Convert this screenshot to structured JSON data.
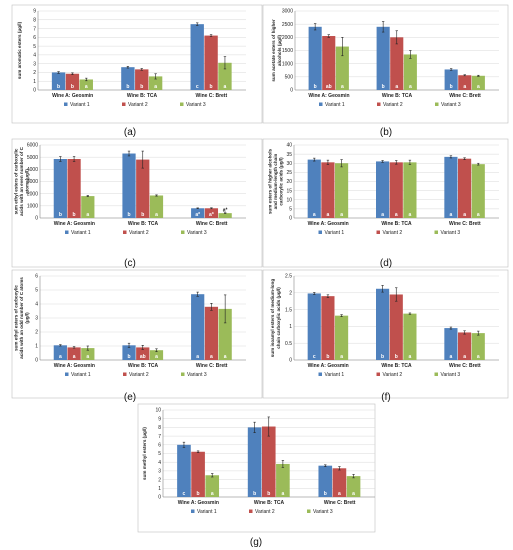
{
  "colors": {
    "variant_1": "#4f81bd",
    "variant_2": "#c0504d",
    "variant_3": "#9bbb59",
    "grid": "#d9d9d9",
    "axis": "#888888"
  },
  "chart_data": [
    {
      "type": "bar",
      "panel_label": "(a)",
      "ylabel": "sum aromatic esters (μg/l)",
      "categories": [
        "Wine A: Geosmin",
        "Wine B: TCA",
        "Wine C: Brett"
      ],
      "ylim": [
        0,
        9
      ],
      "yticks": [
        0,
        1,
        2,
        3,
        4,
        5,
        6,
        7,
        8,
        9
      ],
      "series": [
        {
          "name": "Variant 1",
          "values": [
            2.0,
            2.6,
            7.5
          ],
          "errors": [
            0.1,
            0.1,
            0.15
          ],
          "letters": [
            "b",
            "b",
            "c"
          ]
        },
        {
          "name": "Variant 2",
          "values": [
            1.85,
            2.35,
            6.2
          ],
          "errors": [
            0.1,
            0.1,
            0.1
          ],
          "letters": [
            "b",
            "b",
            "b"
          ]
        },
        {
          "name": "Variant 3",
          "values": [
            1.2,
            1.55,
            3.1
          ],
          "errors": [
            0.15,
            0.3,
            0.7
          ],
          "letters": [
            "a",
            "a",
            "a"
          ]
        }
      ],
      "legend": [
        "Variant 1",
        "Variant 2",
        "Variant 3"
      ],
      "legend_position": "bottom"
    },
    {
      "type": "bar",
      "panel_label": "(b)",
      "ylabel": "sum acetate esters of higher alcohols (μg/l)",
      "categories": [
        "Wine A: Geosmin",
        "Wine B: TCA",
        "Wine C: Brett"
      ],
      "ylim": [
        0,
        3000
      ],
      "yticks": [
        0,
        500,
        1000,
        1500,
        2000,
        2500,
        3000
      ],
      "series": [
        {
          "name": "Variant 1",
          "values": [
            2400,
            2400,
            780
          ],
          "errors": [
            120,
            200,
            30
          ],
          "letters": [
            "b",
            "b",
            "b"
          ]
        },
        {
          "name": "Variant 2",
          "values": [
            2050,
            2000,
            560
          ],
          "errors": [
            50,
            250,
            20
          ],
          "letters": [
            "ab",
            "a",
            "a"
          ]
        },
        {
          "name": "Variant 3",
          "values": [
            1650,
            1350,
            540
          ],
          "errors": [
            350,
            150,
            20
          ],
          "letters": [
            "a",
            "a",
            "a"
          ]
        }
      ],
      "legend": [
        "Variant 1",
        "Variant 2",
        "Variant 3"
      ],
      "legend_position": "bottom"
    },
    {
      "type": "bar",
      "panel_label": "(c)",
      "ylabel": "sum ethyl esters of carboxylic acids with an even number of C atoms(μg/l)",
      "categories": [
        "Wine A: Geosmin",
        "Wine B: TCA",
        "Wine C: Brett"
      ],
      "ylim": [
        0,
        6000
      ],
      "yticks": [
        0,
        1000,
        2000,
        3000,
        4000,
        5000,
        6000
      ],
      "series": [
        {
          "name": "Variant 1",
          "values": [
            4850,
            5300,
            800
          ],
          "errors": [
            200,
            200,
            30
          ],
          "letters": [
            "b",
            "b",
            "a*"
          ]
        },
        {
          "name": "Variant 2",
          "values": [
            4850,
            4800,
            800
          ],
          "errors": [
            200,
            700,
            40
          ],
          "letters": [
            "b",
            "b",
            "a*"
          ]
        },
        {
          "name": "Variant 3",
          "values": [
            1800,
            1850,
            400
          ],
          "errors": [
            50,
            50,
            30
          ],
          "letters": [
            "a",
            "a",
            "a*"
          ]
        }
      ],
      "legend": [
        "Variant 1",
        "Variant 2",
        "Variant 3"
      ],
      "legend_position": "bottom"
    },
    {
      "type": "bar",
      "panel_label": "(d)",
      "ylabel": "sum esters of higher alcohols and medium-length chain carboxylic acids (μg/l)",
      "categories": [
        "Wine A: Geosmin",
        "Wine B: TCA",
        "Wine C: Brett"
      ],
      "ylim": [
        0,
        40
      ],
      "yticks": [
        0,
        5,
        10,
        15,
        20,
        25,
        30,
        35,
        40
      ],
      "series": [
        {
          "name": "Variant 1",
          "values": [
            32,
            31,
            33.5
          ],
          "errors": [
            0.8,
            0.5,
            0.6
          ],
          "letters": [
            "a",
            "a",
            "a"
          ]
        },
        {
          "name": "Variant 2",
          "values": [
            30.5,
            30.5,
            32.5
          ],
          "errors": [
            1.2,
            1.0,
            0.5
          ],
          "letters": [
            "a",
            "a",
            "a"
          ]
        },
        {
          "name": "Variant 3",
          "values": [
            30,
            30.5,
            29.5
          ],
          "errors": [
            2.0,
            1.2,
            0.5
          ],
          "letters": [
            "a",
            "a",
            "a"
          ]
        }
      ],
      "legend": [
        "Variant 1",
        "Variant 2",
        "Variant 3"
      ],
      "legend_position": "bottom"
    },
    {
      "type": "bar",
      "panel_label": "(e)",
      "ylabel": "sum ethyl esters of carboxylic acids with an odd number of C atoms (μg/l)",
      "categories": [
        "Wine A: Geosmin",
        "Wine B: TCA",
        "Wine C: Brett"
      ],
      "ylim": [
        0,
        6
      ],
      "yticks": [
        0,
        1,
        2,
        3,
        4,
        5,
        6
      ],
      "series": [
        {
          "name": "Variant 1",
          "values": [
            1.05,
            1.05,
            4.7
          ],
          "errors": [
            0.05,
            0.15,
            0.15
          ],
          "letters": [
            "a",
            "b",
            "a"
          ]
        },
        {
          "name": "Variant 2",
          "values": [
            0.9,
            0.9,
            3.8
          ],
          "errors": [
            0.05,
            0.15,
            0.25
          ],
          "letters": [
            "a",
            "ab",
            "a"
          ]
        },
        {
          "name": "Variant 3",
          "values": [
            0.85,
            0.7,
            3.65
          ],
          "errors": [
            0.15,
            0.1,
            1.0
          ],
          "letters": [
            "a",
            "a",
            "a"
          ]
        }
      ],
      "legend": [
        "Variant 1",
        "Variant 2",
        "Variant 3"
      ],
      "legend_position": "bottom"
    },
    {
      "type": "bar",
      "panel_label": "(f)",
      "ylabel": "sum isoamyl esters of medium-long chain carboxylic acids (μg/l)",
      "categories": [
        "Wine A: Geosmin",
        "Wine B: TCA",
        "Wine C: Brett"
      ],
      "ylim": [
        0,
        2.5
      ],
      "yticks": [
        0,
        0.5,
        1,
        1.5,
        2,
        2.5
      ],
      "series": [
        {
          "name": "Variant 1",
          "values": [
            1.98,
            2.12,
            0.95
          ],
          "errors": [
            0.03,
            0.1,
            0.03
          ],
          "letters": [
            "c",
            "b",
            "a"
          ]
        },
        {
          "name": "Variant 2",
          "values": [
            1.9,
            1.95,
            0.82
          ],
          "errors": [
            0.04,
            0.2,
            0.05
          ],
          "letters": [
            "b",
            "b",
            "a"
          ]
        },
        {
          "name": "Variant 3",
          "values": [
            1.32,
            1.38,
            0.8
          ],
          "errors": [
            0.03,
            0.02,
            0.06
          ],
          "letters": [
            "a",
            "a",
            "a"
          ]
        }
      ],
      "legend": [
        "Variant 1",
        "Variant 2",
        "Variant 3"
      ],
      "legend_position": "bottom"
    },
    {
      "type": "bar",
      "panel_label": "(g)",
      "ylabel": "sum methyl esters (μg/l)",
      "categories": [
        "Wine A: Geosmin",
        "Wine B: TCA",
        "Wine C: Brett"
      ],
      "ylim": [
        0,
        10
      ],
      "yticks": [
        0,
        1,
        2,
        3,
        4,
        5,
        6,
        7,
        8,
        9,
        10
      ],
      "series": [
        {
          "name": "Variant 1",
          "values": [
            6.0,
            8.0,
            3.6
          ],
          "errors": [
            0.3,
            0.6,
            0.1
          ],
          "letters": [
            "c",
            "b",
            "b"
          ]
        },
        {
          "name": "Variant 2",
          "values": [
            5.2,
            8.1,
            3.3
          ],
          "errors": [
            0.1,
            1.1,
            0.2
          ],
          "letters": [
            "b",
            "b",
            "a"
          ]
        },
        {
          "name": "Variant 3",
          "values": [
            2.5,
            3.8,
            2.4
          ],
          "errors": [
            0.2,
            0.4,
            0.2
          ],
          "letters": [
            "a",
            "a",
            "a"
          ]
        }
      ],
      "legend": [
        "Variant 1",
        "Variant 2",
        "Variant 3"
      ],
      "legend_position": "bottom"
    }
  ]
}
